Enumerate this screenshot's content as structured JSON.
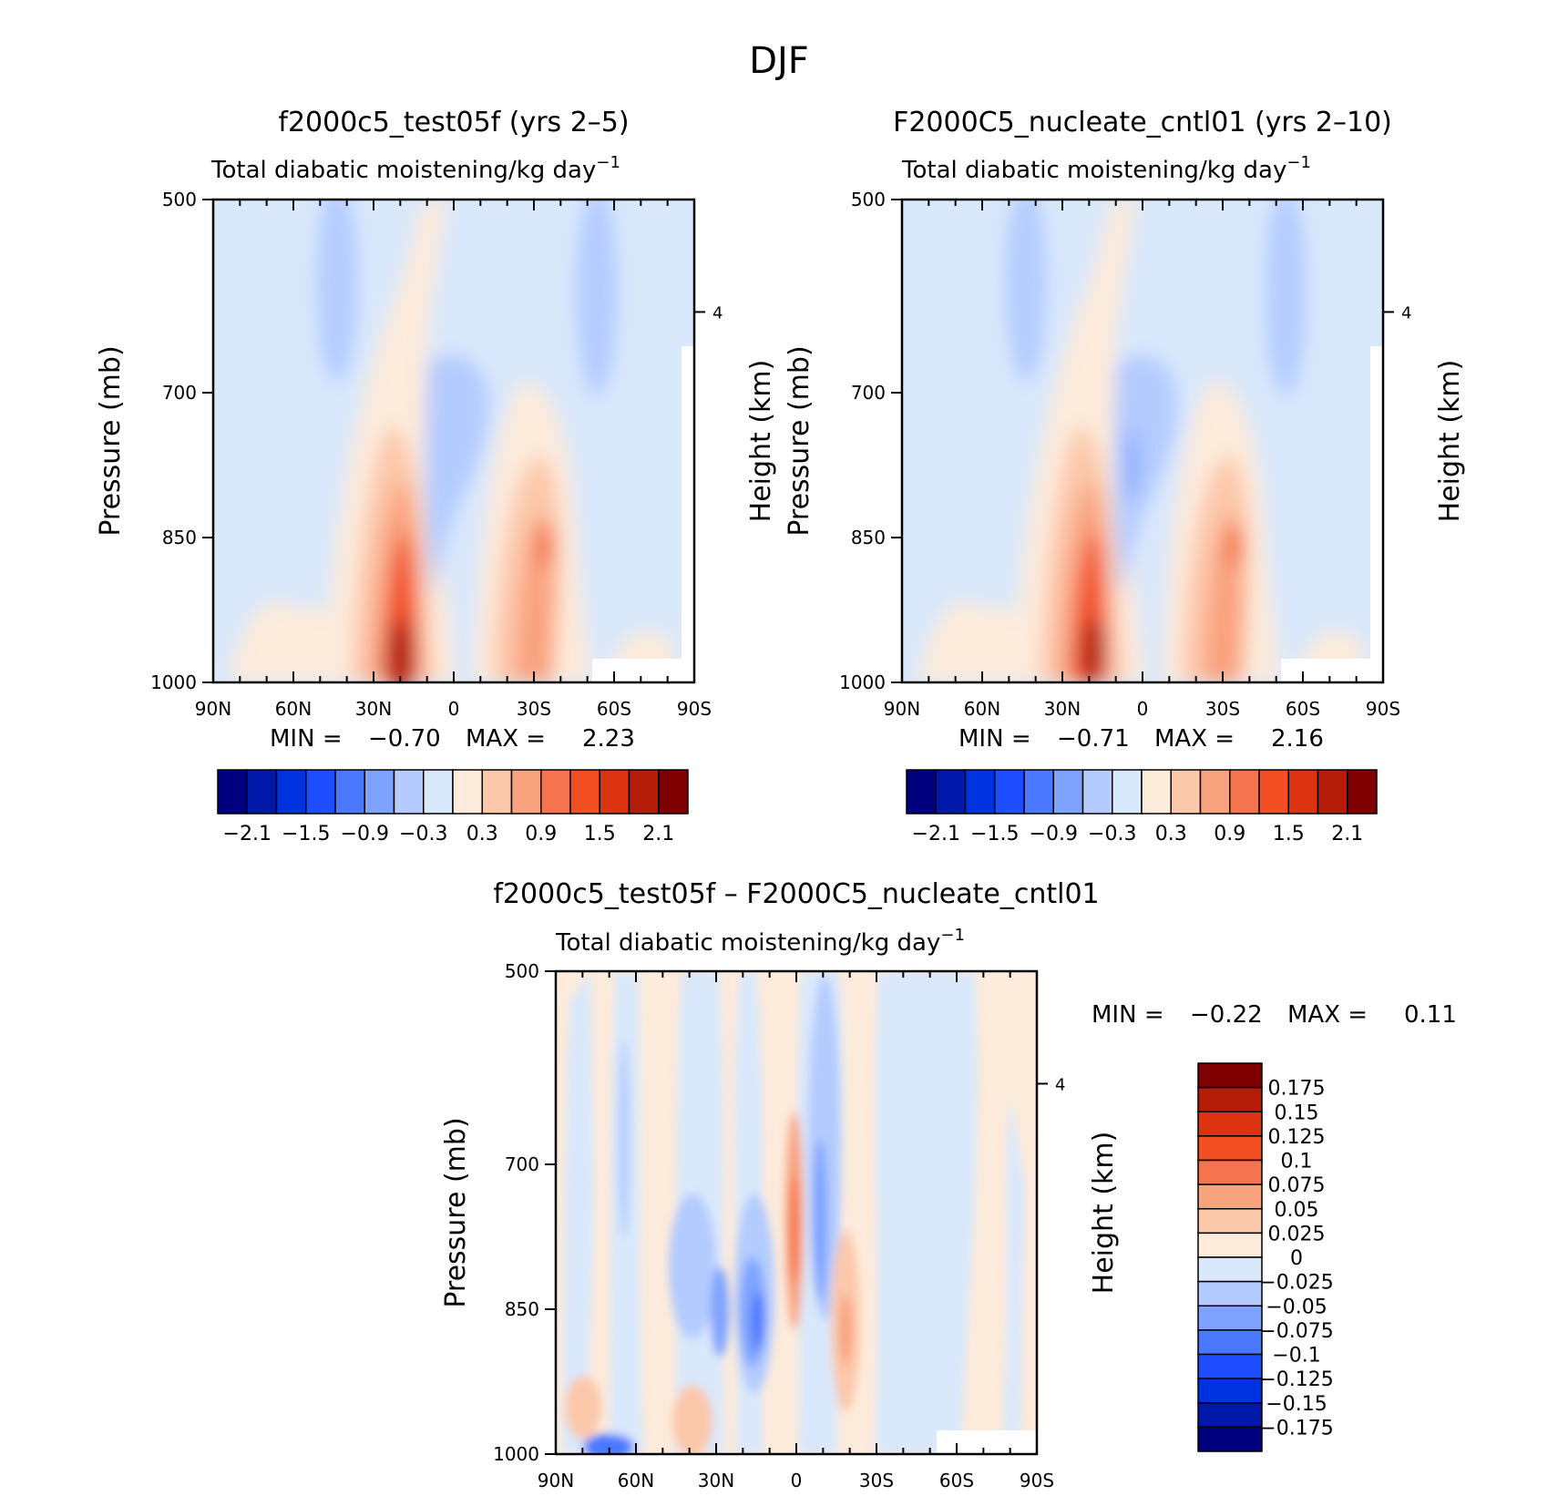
{
  "page": {
    "title": "DJF"
  },
  "panels": [
    {
      "id": "p1",
      "title": "f2000c5_test05f (yrs 2–5)",
      "subtitle": "Total diabatic moistening/kg day",
      "subtitle_sup": "−1",
      "ylabel": "Pressure (mb)",
      "ylabel_right": "Height (km)",
      "min_label": "MIN =",
      "min_value": "−0.70",
      "max_label": "MAX =",
      "max_value": "2.23"
    },
    {
      "id": "p2",
      "title": "F2000C5_nucleate_cntl01 (yrs 2–10)",
      "subtitle": "Total diabatic moistening/kg day",
      "subtitle_sup": "−1",
      "ylabel": "Pressure (mb)",
      "ylabel_right": "Height (km)",
      "min_label": "MIN =",
      "min_value": "−0.71",
      "max_label": "MAX =",
      "max_value": "2.16"
    },
    {
      "id": "p3",
      "title": "f2000c5_test05f – F2000C5_nucleate_cntl01",
      "subtitle": "Total diabatic moistening/kg day",
      "subtitle_sup": "−1",
      "ylabel": "Pressure (mb)",
      "ylabel_right": "Height (km)",
      "min_label": "MIN =",
      "min_value": "−0.22",
      "max_label": "MAX =",
      "max_value": "0.11"
    }
  ],
  "axes": {
    "x_ticks": [
      "90N",
      "60N",
      "30N",
      "0",
      "30S",
      "60S",
      "90S"
    ],
    "y_ticks": [
      "500",
      "700",
      "850",
      "1000"
    ],
    "y_right_ticks": [
      "4"
    ]
  },
  "colorbars": {
    "main_labels": [
      "−2.1",
      "−1.5",
      "−0.9",
      "−0.3",
      "0.3",
      "0.9",
      "1.5",
      "2.1"
    ],
    "diff_labels": [
      "0.175",
      "0.15",
      "0.125",
      "0.1",
      "0.075",
      "0.05",
      "0.025",
      "0",
      "−0.025",
      "−0.05",
      "−0.075",
      "−0.1",
      "−0.125",
      "−0.15",
      "−0.175"
    ],
    "colors": [
      "#00007f",
      "#0019a8",
      "#0033e0",
      "#1e4cff",
      "#4a78ff",
      "#7ea3ff",
      "#b3cbff",
      "#d9e8fb",
      "#fdebdb",
      "#fcc8aa",
      "#f9a27e",
      "#f4754d",
      "#f14e21",
      "#dc3410",
      "#b51d08",
      "#7f0000"
    ]
  },
  "chart_data": [
    {
      "type": "heatmap",
      "title": "f2000c5_test05f (yrs 2–5)",
      "subtitle": "Total diabatic moistening/kg day−1",
      "xlabel": "",
      "ylabel": "Pressure (mb)",
      "ylabel_right": "Height (km)",
      "x_categories": [
        "90N",
        "60N",
        "30N",
        "0",
        "30S",
        "60S",
        "90S"
      ],
      "x_range_deg": [
        90,
        -90
      ],
      "y_ticks_mb": [
        500,
        700,
        850,
        1000
      ],
      "y_range_mb": [
        500,
        1000
      ],
      "y_right_ticks_km": [
        4
      ],
      "min": -0.7,
      "max": 2.23,
      "color_levels": [
        -2.1,
        -1.8,
        -1.5,
        -1.2,
        -0.9,
        -0.6,
        -0.3,
        0,
        0.3,
        0.6,
        0.9,
        1.2,
        1.5,
        1.8,
        2.1
      ],
      "features": [
        {
          "lat": 20,
          "p_mb": 1000,
          "value": 2.2
        },
        {
          "lat": 18,
          "p_mb": 850,
          "value": 1.5
        },
        {
          "lat": 8,
          "p_mb": 760,
          "value": -0.5
        },
        {
          "lat": -35,
          "p_mb": 860,
          "value": 1.2
        },
        {
          "lat": 53,
          "p_mb": 600,
          "value": -0.3
        },
        {
          "lat": -50,
          "p_mb": 620,
          "value": -0.3
        }
      ]
    },
    {
      "type": "heatmap",
      "title": "F2000C5_nucleate_cntl01 (yrs 2–10)",
      "subtitle": "Total diabatic moistening/kg day−1",
      "xlabel": "",
      "ylabel": "Pressure (mb)",
      "ylabel_right": "Height (km)",
      "x_categories": [
        "90N",
        "60N",
        "30N",
        "0",
        "30S",
        "60S",
        "90S"
      ],
      "x_range_deg": [
        90,
        -90
      ],
      "y_ticks_mb": [
        500,
        700,
        850,
        1000
      ],
      "y_range_mb": [
        500,
        1000
      ],
      "y_right_ticks_km": [
        4
      ],
      "min": -0.71,
      "max": 2.16,
      "color_levels": [
        -2.1,
        -1.8,
        -1.5,
        -1.2,
        -0.9,
        -0.6,
        -0.3,
        0,
        0.3,
        0.6,
        0.9,
        1.2,
        1.5,
        1.8,
        2.1
      ],
      "features": [
        {
          "lat": 18,
          "p_mb": 1000,
          "value": 2.1
        },
        {
          "lat": 18,
          "p_mb": 850,
          "value": 1.5
        },
        {
          "lat": 6,
          "p_mb": 760,
          "value": -0.5
        },
        {
          "lat": -35,
          "p_mb": 860,
          "value": 1.2
        },
        {
          "lat": 53,
          "p_mb": 600,
          "value": -0.3
        },
        {
          "lat": -50,
          "p_mb": 620,
          "value": -0.3
        }
      ]
    },
    {
      "type": "heatmap",
      "title": "f2000c5_test05f – F2000C5_nucleate_cntl01",
      "subtitle": "Total diabatic moistening/kg day−1",
      "xlabel": "",
      "ylabel": "Pressure (mb)",
      "ylabel_right": "Height (km)",
      "x_categories": [
        "90N",
        "60N",
        "30N",
        "0",
        "30S",
        "60S",
        "90S"
      ],
      "x_range_deg": [
        90,
        -90
      ],
      "y_ticks_mb": [
        500,
        700,
        850,
        1000
      ],
      "y_range_mb": [
        500,
        1000
      ],
      "y_right_ticks_km": [
        4
      ],
      "min": -0.22,
      "max": 0.11,
      "color_levels": [
        -0.175,
        -0.15,
        -0.125,
        -0.1,
        -0.075,
        -0.05,
        -0.025,
        0,
        0.025,
        0.05,
        0.075,
        0.1,
        0.125,
        0.15,
        0.175
      ],
      "features": [
        {
          "lat": 15,
          "p_mb": 880,
          "value": -0.1
        },
        {
          "lat": 0,
          "p_mb": 770,
          "value": 0.08
        },
        {
          "lat": -18,
          "p_mb": 880,
          "value": 0.07
        },
        {
          "lat": 75,
          "p_mb": 1000,
          "value": -0.2
        },
        {
          "lat": -8,
          "p_mb": 740,
          "value": -0.07
        }
      ]
    }
  ]
}
